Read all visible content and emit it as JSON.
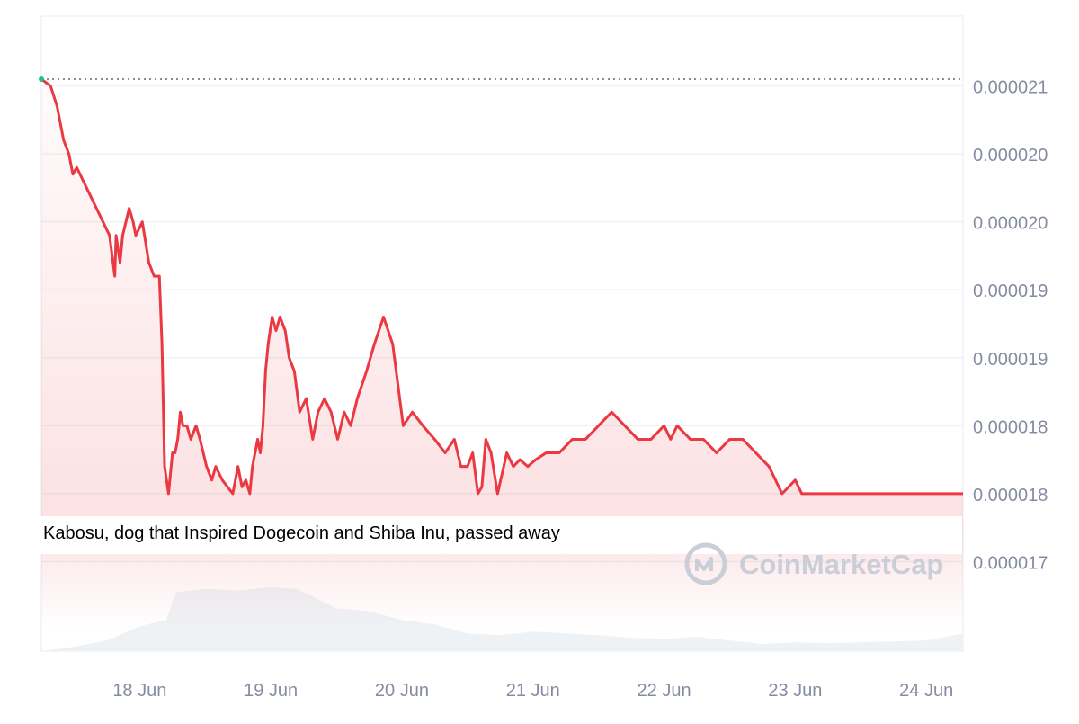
{
  "chart_data": {
    "type": "line",
    "y_tick_labels": [
      "0.000021",
      "0.000020",
      "0.000020",
      "0.000019",
      "0.000019",
      "0.000018",
      "0.000018",
      "0.000017"
    ],
    "y_tick_values": [
      2.1e-05,
      2.05e-05,
      2e-05,
      1.95e-05,
      1.9e-05,
      1.85e-05,
      1.8e-05,
      1.75e-05
    ],
    "ylim": [
      1.7e-05,
      2.15e-05
    ],
    "x_tick_labels": [
      "18 Jun",
      "19 Jun",
      "20 Jun",
      "21 Jun",
      "22 Jun",
      "23 Jun",
      "24 Jun"
    ],
    "x_tick_positions": [
      1,
      2,
      3,
      4,
      5,
      6,
      7
    ],
    "xlim": [
      0.25,
      7.28
    ],
    "reference_line_value": 2.105e-05,
    "annotation": "Kabosu, dog that Inspired Dogecoin and Shiba Inu, passed away",
    "watermark": "CoinMarketCap",
    "grid": true,
    "colors": {
      "price_line": "#ea3943",
      "start_point": "#16c784",
      "fill_top": "#ea3943",
      "volume": "#eff2f5",
      "grid": "#eff2f5",
      "axis_text": "#858ca2",
      "watermark": "#c9ced8"
    },
    "series": [
      {
        "kind": "price",
        "x": [
          0.25,
          0.32,
          0.37,
          0.42,
          0.46,
          0.49,
          0.52,
          0.57,
          0.62,
          0.67,
          0.72,
          0.77,
          0.81,
          0.82,
          0.85,
          0.87,
          0.92,
          0.95,
          0.97,
          1.02,
          1.07,
          1.11,
          1.15,
          1.17,
          1.19,
          1.22,
          1.25,
          1.27,
          1.29,
          1.31,
          1.33,
          1.36,
          1.39,
          1.43,
          1.46,
          1.51,
          1.55,
          1.58,
          1.63,
          1.67,
          1.71,
          1.75,
          1.78,
          1.81,
          1.84,
          1.86,
          1.88,
          1.9,
          1.92,
          1.94,
          1.96,
          1.98,
          2.01,
          2.04,
          2.07,
          2.11,
          2.14,
          2.18,
          2.22,
          2.27,
          2.32,
          2.36,
          2.41,
          2.46,
          2.51,
          2.56,
          2.61,
          2.66,
          2.73,
          2.79,
          2.86,
          2.93,
          3.01,
          3.08,
          3.16,
          3.25,
          3.33,
          3.4,
          3.45,
          3.5,
          3.54,
          3.58,
          3.61,
          3.64,
          3.68,
          3.73,
          3.8,
          3.85,
          3.9,
          3.96,
          4.02,
          4.1,
          4.2,
          4.3,
          4.4,
          4.5,
          4.6,
          4.7,
          4.8,
          4.9,
          5.0,
          5.05,
          5.1,
          5.2,
          5.3,
          5.4,
          5.5,
          5.6,
          5.7,
          5.8,
          5.9,
          6.0,
          6.05,
          6.1,
          6.2,
          6.3,
          6.4,
          6.5,
          6.6,
          6.7,
          6.8,
          6.9,
          7.0,
          7.05,
          7.1,
          7.15,
          7.2,
          7.25,
          7.28
        ],
        "y": [
          2.105e-05,
          2.1e-05,
          2.085e-05,
          2.06e-05,
          2.05e-05,
          2.035e-05,
          2.04e-05,
          2.03e-05,
          2.02e-05,
          2.01e-05,
          2e-05,
          1.99e-05,
          1.96e-05,
          1.99e-05,
          1.97e-05,
          1.99e-05,
          2.01e-05,
          2e-05,
          1.99e-05,
          2e-05,
          1.97e-05,
          1.96e-05,
          1.96e-05,
          1.91e-05,
          1.82e-05,
          1.8e-05,
          1.83e-05,
          1.83e-05,
          1.84e-05,
          1.86e-05,
          1.85e-05,
          1.85e-05,
          1.84e-05,
          1.85e-05,
          1.84e-05,
          1.82e-05,
          1.81e-05,
          1.82e-05,
          1.81e-05,
          1.805e-05,
          1.8e-05,
          1.82e-05,
          1.805e-05,
          1.81e-05,
          1.8e-05,
          1.82e-05,
          1.83e-05,
          1.84e-05,
          1.83e-05,
          1.85e-05,
          1.89e-05,
          1.91e-05,
          1.93e-05,
          1.92e-05,
          1.93e-05,
          1.92e-05,
          1.9e-05,
          1.89e-05,
          1.86e-05,
          1.87e-05,
          1.84e-05,
          1.86e-05,
          1.87e-05,
          1.86e-05,
          1.84e-05,
          1.86e-05,
          1.85e-05,
          1.87e-05,
          1.89e-05,
          1.91e-05,
          1.93e-05,
          1.91e-05,
          1.85e-05,
          1.86e-05,
          1.85e-05,
          1.84e-05,
          1.83e-05,
          1.84e-05,
          1.82e-05,
          1.82e-05,
          1.83e-05,
          1.8e-05,
          1.805e-05,
          1.84e-05,
          1.83e-05,
          1.8e-05,
          1.83e-05,
          1.82e-05,
          1.825e-05,
          1.82e-05,
          1.825e-05,
          1.83e-05,
          1.83e-05,
          1.84e-05,
          1.84e-05,
          1.85e-05,
          1.86e-05,
          1.85e-05,
          1.84e-05,
          1.84e-05,
          1.85e-05,
          1.84e-05,
          1.85e-05,
          1.84e-05,
          1.84e-05,
          1.83e-05,
          1.84e-05,
          1.84e-05,
          1.83e-05,
          1.82e-05,
          1.8e-05,
          1.81e-05,
          1.8e-05,
          1.8e-05,
          1.8e-05,
          1.8e-05,
          1.8e-05,
          1.8e-05,
          1.8e-05,
          1.8e-05,
          1.8e-05,
          1.8e-05,
          1.8e-05,
          1.8e-05,
          1.8e-05,
          1.8e-05,
          1.8e-05,
          1.8e-05,
          1.8e-05
        ]
      },
      {
        "kind": "volume",
        "x": [
          0.25,
          0.5,
          0.75,
          1.0,
          1.2,
          1.28,
          1.5,
          1.75,
          2.0,
          2.2,
          2.5,
          2.75,
          3.0,
          3.25,
          3.5,
          3.75,
          4.0,
          4.25,
          4.5,
          4.75,
          5.0,
          5.25,
          5.5,
          5.75,
          6.0,
          6.25,
          6.5,
          6.75,
          7.0,
          7.28
        ],
        "y": [
          0.0,
          0.05,
          0.12,
          0.28,
          0.35,
          0.66,
          0.7,
          0.68,
          0.72,
          0.7,
          0.48,
          0.45,
          0.35,
          0.3,
          0.2,
          0.18,
          0.22,
          0.2,
          0.18,
          0.15,
          0.14,
          0.16,
          0.12,
          0.08,
          0.1,
          0.09,
          0.1,
          0.11,
          0.12,
          0.2
        ]
      }
    ]
  }
}
